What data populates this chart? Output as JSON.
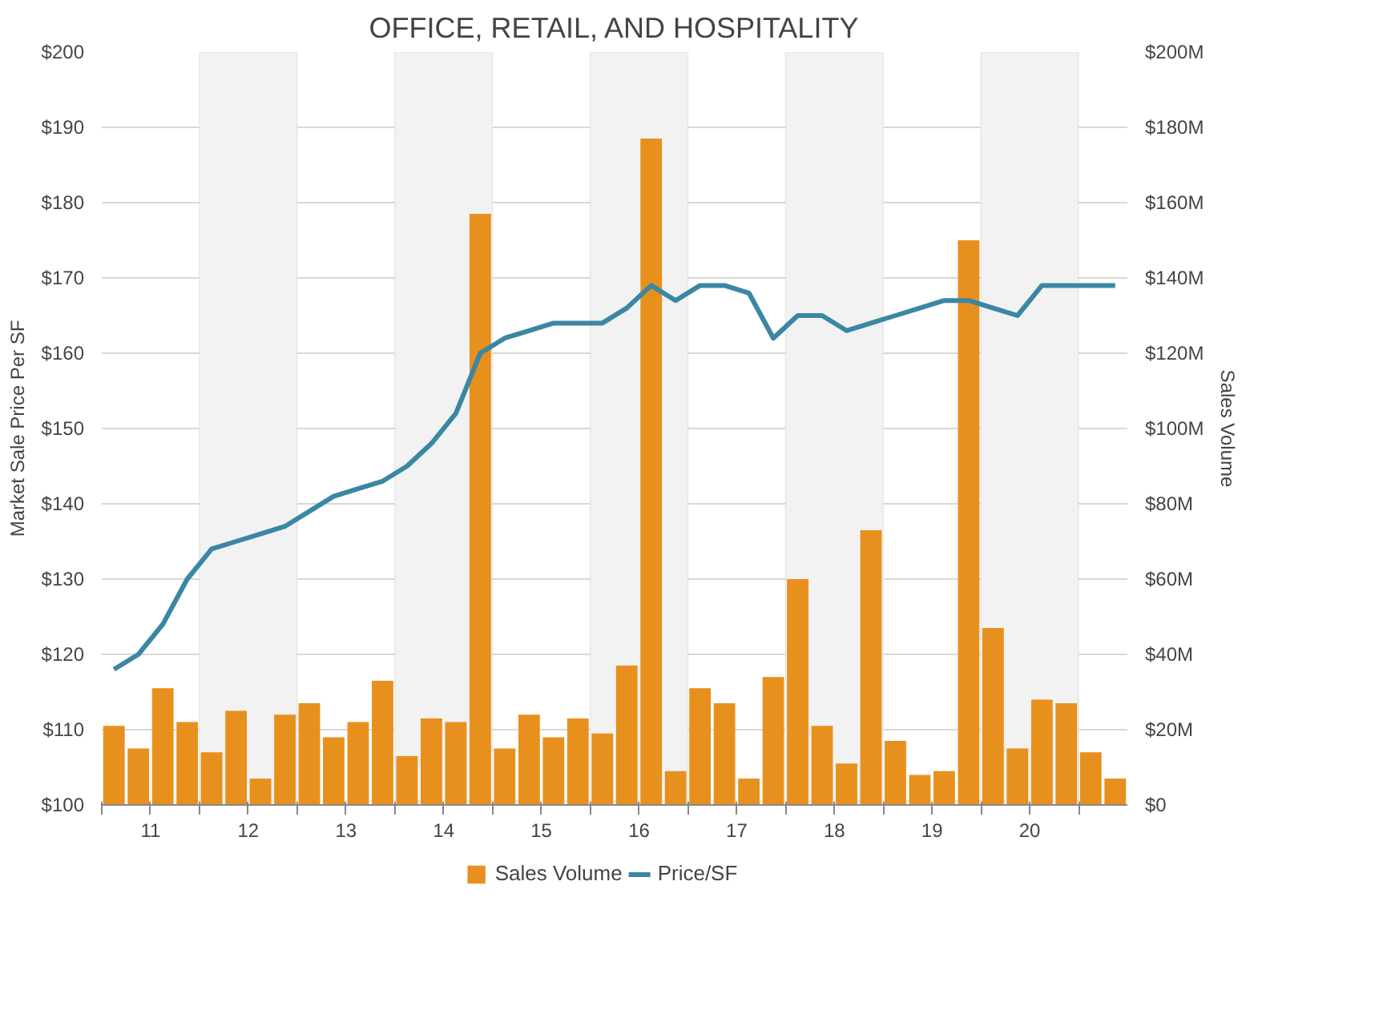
{
  "chart_data": {
    "type": "bar",
    "title": "OFFICE, RETAIL, AND HOSPITALITY",
    "ylabel": "Market Sale Price Per SF",
    "y2label": "Sales Volume",
    "x": [
      10.625,
      10.875,
      11.125,
      11.375,
      11.625,
      11.875,
      12.125,
      12.375,
      12.625,
      12.875,
      13.125,
      13.375,
      13.625,
      13.875,
      14.125,
      14.375,
      14.625,
      14.875,
      15.125,
      15.375,
      15.625,
      15.875,
      16.125,
      16.375,
      16.625,
      16.875,
      17.125,
      17.375,
      17.625,
      17.875,
      18.125,
      18.375,
      18.625,
      18.875,
      19.125,
      19.375,
      19.625,
      19.875,
      20.125,
      20.375,
      20.625,
      20.875
    ],
    "series": [
      {
        "name": "Sales Volume",
        "axis": "y2",
        "color": "#e8901e",
        "values": [
          21,
          15,
          31,
          22,
          14,
          25,
          7,
          24,
          27,
          18,
          22,
          33,
          13,
          23,
          22,
          157,
          15,
          24,
          18,
          23,
          19,
          37,
          177,
          9,
          31,
          27,
          7,
          34,
          60,
          21,
          11,
          73,
          17,
          8,
          9,
          150,
          47,
          15,
          28,
          27,
          14,
          7
        ]
      },
      {
        "name": "Price/SF",
        "type": "line",
        "color": "#3a87a4",
        "values": [
          118,
          120,
          124,
          130,
          134,
          135,
          136,
          137,
          139,
          141,
          142,
          143,
          145,
          148,
          152,
          160,
          162,
          163,
          164,
          164,
          164,
          166,
          169,
          167,
          169,
          169,
          168,
          162,
          165,
          165,
          163,
          164,
          165,
          166,
          167,
          167,
          166,
          165,
          169,
          169,
          169,
          169
        ]
      }
    ],
    "xlim": [
      10.5,
      21
    ],
    "xticks": [
      {
        "value": 10.5,
        "label": null
      },
      11,
      {
        "value": 11.5,
        "label": null
      },
      12,
      {
        "value": 12.5,
        "label": null
      },
      13,
      {
        "value": 13.5,
        "label": null
      },
      14,
      {
        "value": 14.5,
        "label": null
      },
      15,
      {
        "value": 15.5,
        "label": null
      },
      16,
      {
        "value": 16.5,
        "label": null
      },
      17,
      {
        "value": 17.5,
        "label": null
      },
      18,
      {
        "value": 18.5,
        "label": null
      },
      19,
      {
        "value": 19.5,
        "label": null
      },
      20,
      {
        "value": 20.5,
        "label": null
      }
    ],
    "ylim": [
      100,
      200
    ],
    "yticks": [
      {
        "value": 100,
        "label": "$100"
      },
      {
        "value": 110,
        "label": "$110"
      },
      {
        "value": 120,
        "label": "$120"
      },
      {
        "value": 130,
        "label": "$130"
      },
      {
        "value": 140,
        "label": "$140"
      },
      {
        "value": 150,
        "label": "$150"
      },
      {
        "value": 160,
        "label": "$160"
      },
      {
        "value": 170,
        "label": "$170"
      },
      {
        "value": 180,
        "label": "$180"
      },
      {
        "value": 190,
        "label": "$190"
      },
      {
        "value": 200,
        "label": "$200"
      }
    ],
    "y2lim": [
      0,
      200
    ],
    "y2ticks": [
      {
        "value": 0,
        "label": "$0"
      },
      {
        "value": 20,
        "label": "$20M"
      },
      {
        "value": 40,
        "label": "$40M"
      },
      {
        "value": 60,
        "label": "$60M"
      },
      {
        "value": 80,
        "label": "$80M"
      },
      {
        "value": 100,
        "label": "$100M"
      },
      {
        "value": 120,
        "label": "$120M"
      },
      {
        "value": 140,
        "label": "$140M"
      },
      {
        "value": 160,
        "label": "$160M"
      },
      {
        "value": 180,
        "label": "$180M"
      },
      {
        "value": 200,
        "label": "$200M"
      }
    ],
    "bands": [
      {
        "axis": "x",
        "from": 11.5,
        "to": 12.5,
        "color": "#f2f2f2"
      },
      {
        "axis": "x",
        "from": 13.5,
        "to": 14.5,
        "color": "#f2f2f2"
      },
      {
        "axis": "x",
        "from": 15.5,
        "to": 16.5,
        "color": "#f2f2f2"
      },
      {
        "axis": "x",
        "from": 17.5,
        "to": 18.5,
        "color": "#f2f2f2"
      },
      {
        "axis": "x",
        "from": 19.5,
        "to": 20.5,
        "color": "#f2f2f2"
      }
    ],
    "grid": "y",
    "legend": "bottom",
    "marker": "none",
    "line_style": "solid"
  }
}
